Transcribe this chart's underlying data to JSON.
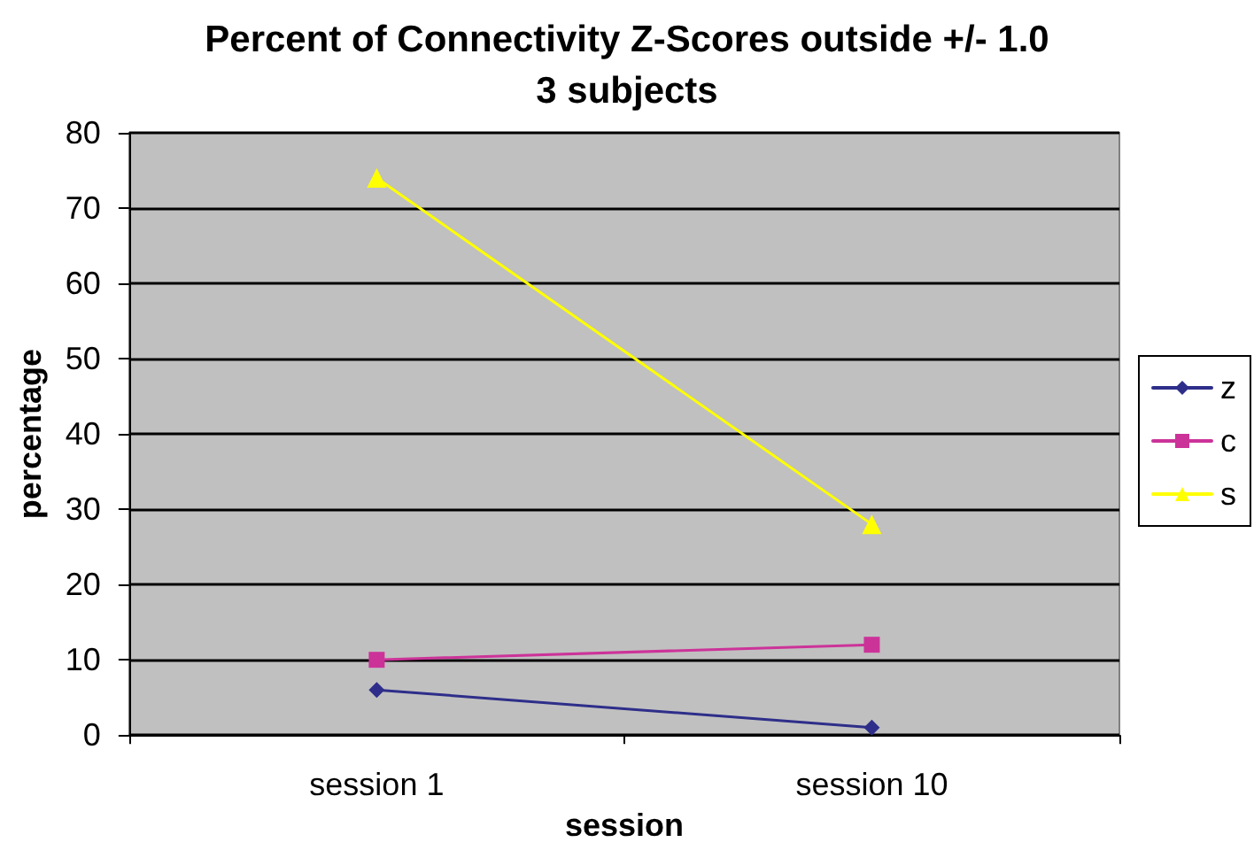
{
  "chart_data": {
    "type": "line",
    "title": "Percent of Connectivity Z-Scores outside +/- 1.0",
    "subtitle": "3 subjects",
    "xlabel": "session",
    "ylabel": "percentage",
    "categories": [
      "session 1",
      "session 10"
    ],
    "series": [
      {
        "name": "z",
        "color": "#2e2e8a",
        "marker": "diamond",
        "values": [
          6,
          1
        ]
      },
      {
        "name": "c",
        "color": "#cc3399",
        "marker": "square",
        "values": [
          10,
          12
        ]
      },
      {
        "name": "s",
        "color": "#ffff00",
        "marker": "triangle",
        "values": [
          74,
          28
        ]
      }
    ],
    "ylim": [
      0,
      80
    ],
    "yticks": [
      0,
      10,
      20,
      30,
      40,
      50,
      60,
      70,
      80
    ],
    "grid": "y",
    "legend": "right",
    "line_style": "solid"
  }
}
